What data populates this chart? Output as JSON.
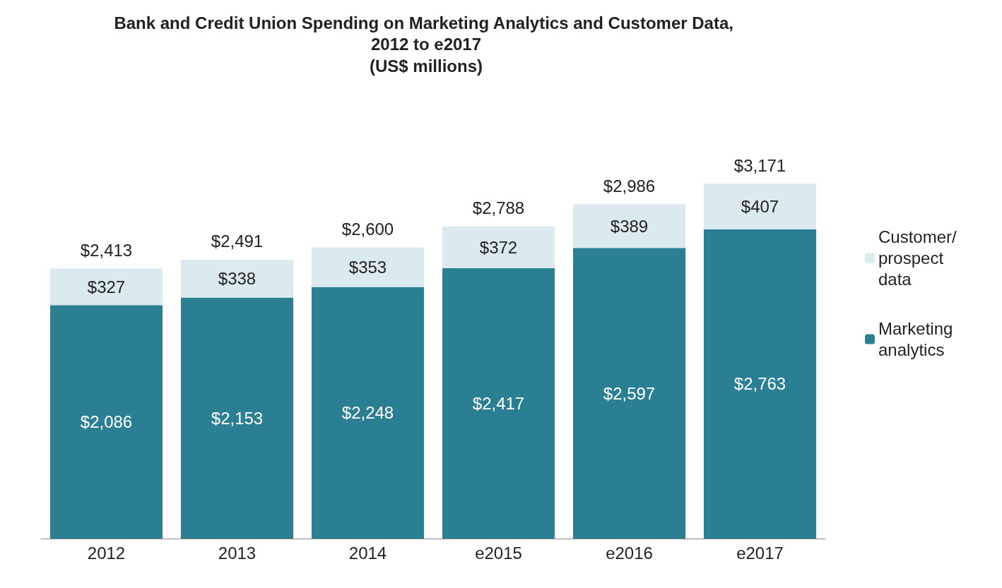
{
  "chart_data": {
    "type": "bar",
    "stacked": true,
    "title": "Bank and Credit Union Spending on Marketing Analytics and Customer Data, 2012 to e2017",
    "subtitle": "(US$ millions)",
    "categories": [
      "2012",
      "2013",
      "2014",
      "e2015",
      "e2016",
      "e2017"
    ],
    "series": [
      {
        "name": "Marketing analytics",
        "color": "#2a7f93",
        "values": [
          2086,
          2153,
          2248,
          2417,
          2597,
          2763
        ],
        "value_labels": [
          "$2,086",
          "$2,153",
          "$2,248",
          "$2,417",
          "$2,597",
          "$2,763"
        ]
      },
      {
        "name": "Customer/ prospect data",
        "color": "#dbeaef",
        "values": [
          327,
          338,
          353,
          372,
          389,
          407
        ],
        "value_labels": [
          "$327",
          "$338",
          "$353",
          "$372",
          "$389",
          "$407"
        ]
      }
    ],
    "totals": [
      "$2,413",
      "$2,491",
      "$2,600",
      "$2,788",
      "$2,986",
      "$3,171"
    ],
    "legend": "right"
  }
}
